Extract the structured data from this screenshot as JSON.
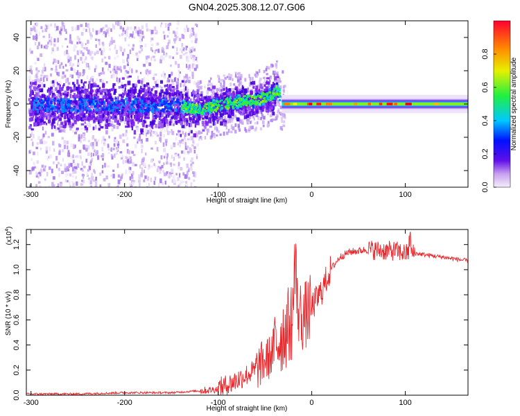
{
  "title": "GN04.2025.308.12.07.G06",
  "chart_data": [
    {
      "type": "heatmap",
      "xlabel": "Height of straight line (km)",
      "ylabel": "Frequency (Hz)",
      "xlim": [
        -305,
        167
      ],
      "ylim": [
        -50,
        50
      ],
      "xticks": [
        -300,
        -200,
        -100,
        0,
        100
      ],
      "xtick_labels": [
        "-300",
        "-200",
        "-100",
        "0",
        "100"
      ],
      "yticks": [
        -40,
        -20,
        0,
        20,
        40
      ],
      "ytick_labels": [
        "-40",
        "-20",
        "0",
        "20",
        "40"
      ],
      "colorbar": {
        "label": "Normalized spectral amplitude",
        "range": [
          0,
          1
        ],
        "ticks": [
          0.0,
          0.2,
          0.4,
          0.6,
          0.8
        ],
        "tick_labels": [
          "0.0",
          "0.2",
          "0.4",
          "0.6",
          "0.8"
        ],
        "colormap": [
          "#f4eefa",
          "#9040e8",
          "#2000f0",
          "#00d0ff",
          "#20f050",
          "#f0f000",
          "#ff8000",
          "#ff0010"
        ]
      },
      "ridge": {
        "x": [
          -300,
          -250,
          -200,
          -150,
          -120,
          -100,
          -80,
          -60,
          -45,
          -38,
          -30,
          0,
          50,
          100,
          167
        ],
        "freq": [
          0,
          0,
          0,
          0,
          -3,
          0,
          2,
          3,
          6,
          9,
          0,
          0,
          0,
          0,
          0
        ]
      }
    },
    {
      "type": "line",
      "xlabel": "Height of straight line (km)",
      "ylabel": "SNR (10 * v/v)",
      "y_scale_label": "(x10",
      "y_scale_exp": "4",
      "y_scale_close": ")",
      "xlim": [
        -305,
        167
      ],
      "ylim": [
        0,
        1.32
      ],
      "xticks": [
        -300,
        -200,
        -100,
        0,
        100
      ],
      "xtick_labels": [
        "-300",
        "-200",
        "-100",
        "0",
        "100"
      ],
      "yticks": [
        0.0,
        0.2,
        0.4,
        0.6,
        0.8,
        1.0,
        1.2
      ],
      "ytick_labels": [
        "0.0",
        "0.2",
        "0.4",
        "0.6",
        "0.8",
        "1.0",
        "1.2"
      ],
      "series": [
        {
          "name": "SNR",
          "color": "#e8282c",
          "x": [
            -305,
            -250,
            -200,
            -180,
            -150,
            -130,
            -110,
            -100,
            -90,
            -80,
            -70,
            -60,
            -50,
            -45,
            -40,
            -35,
            -30,
            -25,
            -20,
            -18,
            -15,
            -10,
            -5,
            0,
            10,
            20,
            30,
            40,
            60,
            80,
            90,
            100,
            110,
            120,
            140,
            167
          ],
          "y": [
            0.01,
            0.01,
            0.02,
            0.02,
            0.02,
            0.03,
            0.04,
            0.05,
            0.08,
            0.12,
            0.16,
            0.2,
            0.28,
            0.3,
            0.38,
            0.45,
            0.5,
            0.55,
            0.6,
            0.82,
            0.68,
            0.62,
            0.65,
            0.7,
            0.82,
            1.0,
            1.1,
            1.14,
            1.16,
            1.15,
            1.15,
            1.13,
            1.13,
            1.12,
            1.1,
            1.07
          ]
        }
      ]
    }
  ]
}
